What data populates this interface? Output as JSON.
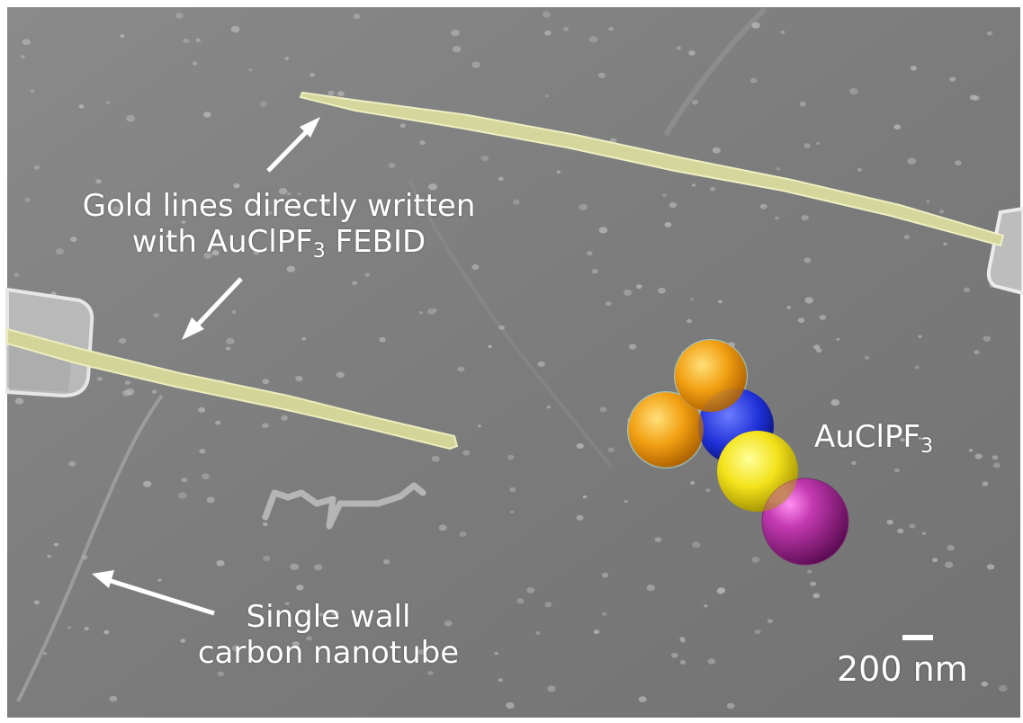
{
  "labels": {
    "gold_lines": {
      "line1": "Gold lines directly written",
      "line2_prefix": "with AuClPF",
      "line2_sub": "3",
      "line2_suffix": " FEBID"
    },
    "nanotube": {
      "line1": "Single wall",
      "line2": "carbon nanotube"
    },
    "molecule": {
      "prefix": "AuClPF",
      "sub": "3"
    },
    "scale_bar": "200 nm"
  },
  "colors": {
    "background": "#7b7b7b",
    "gold_line": "#d8d99a",
    "electrode": "#c9c9c9",
    "atom_orange": "#f2a012",
    "atom_blue": "#1e2fd6",
    "atom_yellow": "#f3e21a",
    "atom_purple": "#9b1e8c",
    "annotation": "#ffffff"
  },
  "icons": [
    "arrow-icon",
    "molecule-model-icon"
  ]
}
